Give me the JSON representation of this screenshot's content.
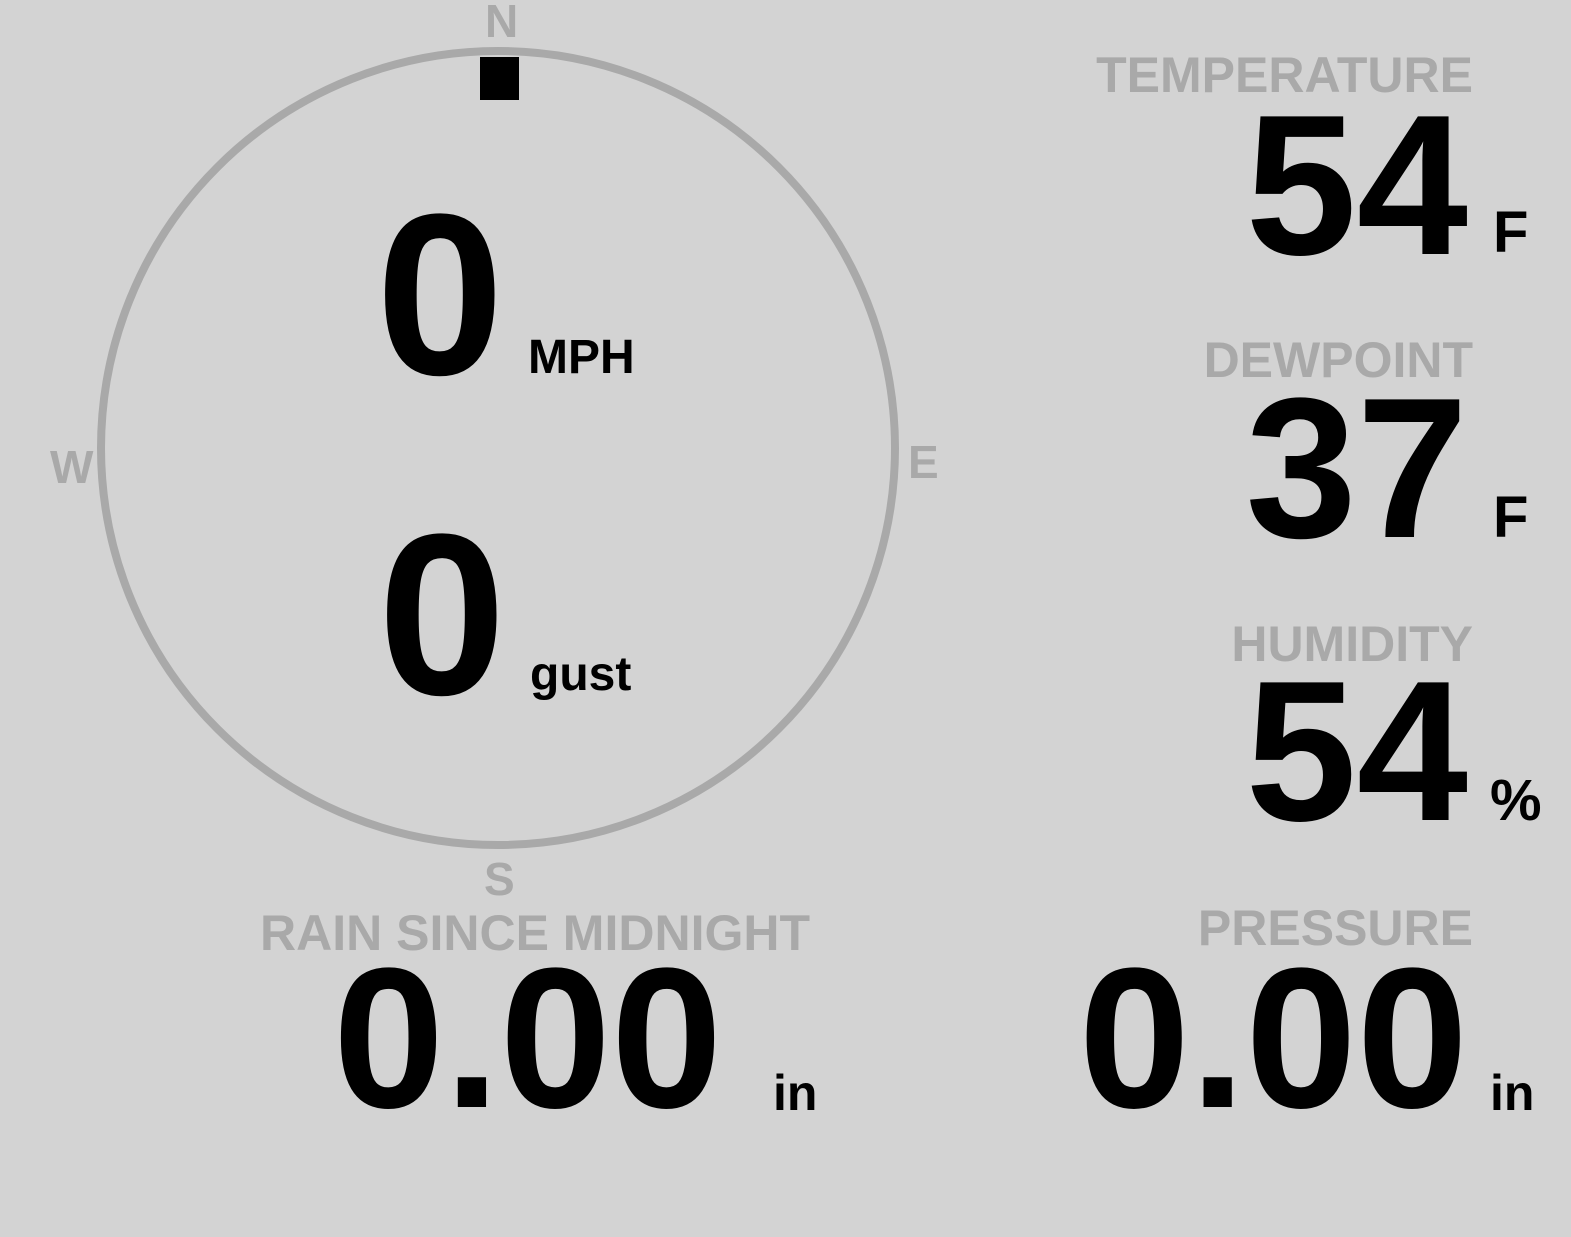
{
  "colors": {
    "background": "#d3d3d3",
    "label": "#a9a9a9",
    "value": "#000000"
  },
  "wind": {
    "direction_degrees": 0,
    "compass": {
      "n": "N",
      "e": "E",
      "s": "S",
      "w": "W"
    },
    "speed": "0",
    "speed_unit": "MPH",
    "gust": "0",
    "gust_unit": "gust"
  },
  "temperature": {
    "label": "TEMPERATURE",
    "value": "54",
    "unit": "F"
  },
  "dewpoint": {
    "label": "DEWPOINT",
    "value": "37",
    "unit": "F"
  },
  "humidity": {
    "label": "HUMIDITY",
    "value": "54",
    "unit": "%"
  },
  "rain": {
    "label": "RAIN SINCE MIDNIGHT",
    "value": "0.00",
    "unit": "in"
  },
  "pressure": {
    "label": "PRESSURE",
    "value": "0.00",
    "unit": "in"
  }
}
